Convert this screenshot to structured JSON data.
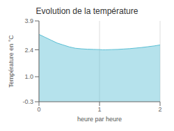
{
  "chart_data": {
    "type": "area",
    "title": "Evolution de la température",
    "xlabel": "heure par heure",
    "ylabel": "Température en °C",
    "x": [
      0,
      0.1,
      0.2,
      0.3,
      0.4,
      0.5,
      0.6,
      0.7,
      0.8,
      0.9,
      1.0,
      1.05,
      1.1,
      1.2,
      1.3,
      1.4,
      1.5,
      1.6,
      1.7,
      1.8,
      1.9,
      2.0
    ],
    "values": [
      3.2,
      3.05,
      2.9,
      2.75,
      2.65,
      2.55,
      2.48,
      2.45,
      2.43,
      2.42,
      2.41,
      2.4,
      2.4,
      2.41,
      2.42,
      2.44,
      2.46,
      2.49,
      2.52,
      2.56,
      2.6,
      2.65
    ],
    "color": "#5bbfd4",
    "xlim": [
      0,
      2
    ],
    "ylim": [
      -0.3,
      3.9
    ],
    "xticks": [
      0,
      1,
      2
    ],
    "yticks": [
      -0.3,
      {
        "value": 1.0,
        "label": "1.0"
      },
      2.4,
      3.9
    ],
    "grid": "x"
  }
}
